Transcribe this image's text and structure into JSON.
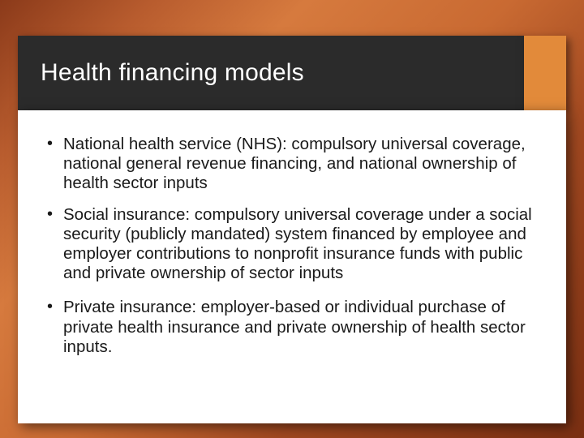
{
  "slide": {
    "title": "Health financing models",
    "background_gradient": [
      "#8b3a1a",
      "#b85c2e",
      "#d67a3e",
      "#c96a32",
      "#a04820",
      "#7a2f12"
    ],
    "title_bar_color": "#2b2b2b",
    "accent_color": "#e28a3a",
    "content_bg": "#ffffff",
    "title_fontsize": 30,
    "body_fontsize": 20.5,
    "text_color": "#1a1a1a",
    "bullets": [
      "National health service (NHS): compulsory universal coverage, national general revenue financing, and national ownership of health sector inputs",
      "Social insurance: compulsory universal coverage under a social security (publicly mandated) system financed by employee and employer contributions to nonprofit insurance funds with public and private ownership of sector inputs",
      "Private insurance: employer-based or individual purchase of private health insurance and private ownership of health sector inputs."
    ]
  }
}
